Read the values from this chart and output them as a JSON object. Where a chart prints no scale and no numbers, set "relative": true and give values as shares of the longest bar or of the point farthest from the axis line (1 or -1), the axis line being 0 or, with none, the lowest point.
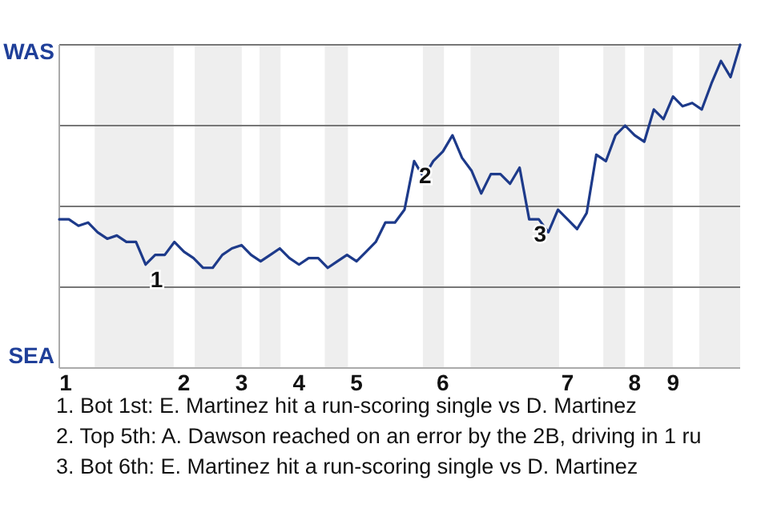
{
  "chart_data": {
    "type": "line",
    "relative": true,
    "grid": true,
    "marker": "none",
    "line_style": "solid",
    "categories": [
      "1",
      null,
      null,
      null,
      null,
      null,
      null,
      null,
      null,
      null,
      null,
      null,
      null,
      "2",
      null,
      null,
      null,
      null,
      null,
      "3",
      null,
      null,
      null,
      null,
      null,
      "4",
      null,
      null,
      null,
      null,
      null,
      "5",
      null,
      null,
      null,
      null,
      null,
      null,
      null,
      null,
      "6",
      null,
      null,
      null,
      null,
      null,
      null,
      null,
      null,
      null,
      null,
      null,
      null,
      "7",
      null,
      null,
      null,
      null,
      null,
      null,
      "8",
      null,
      null,
      null,
      "9",
      null,
      null,
      null,
      null,
      null,
      null,
      null
    ],
    "series": [
      {
        "color": "#1d3a8a",
        "values": [
          0.46,
          0.46,
          0.44,
          0.45,
          0.42,
          0.4,
          0.41,
          0.39,
          0.39,
          0.32,
          0.35,
          0.35,
          0.39,
          0.36,
          0.34,
          0.31,
          0.31,
          0.35,
          0.37,
          0.38,
          0.35,
          0.33,
          0.35,
          0.37,
          0.34,
          0.32,
          0.34,
          0.34,
          0.31,
          0.33,
          0.35,
          0.33,
          0.36,
          0.39,
          0.45,
          0.45,
          0.49,
          0.64,
          0.59,
          0.64,
          0.67,
          0.72,
          0.65,
          0.61,
          0.54,
          0.6,
          0.6,
          0.57,
          0.62,
          0.46,
          0.46,
          0.42,
          0.49,
          0.46,
          0.43,
          0.48,
          0.66,
          0.64,
          0.72,
          0.75,
          0.72,
          0.7,
          0.8,
          0.77,
          0.84,
          0.81,
          0.82,
          0.8,
          0.88,
          0.95,
          0.9,
          1
        ]
      }
    ],
    "annotations": [
      "WAS",
      "SEA",
      "1",
      "2",
      "3",
      "1. Bot 1st: E. Martinez hit a run-scoring single vs D. Martinez",
      "2. Top 5th: A. Dawson reached on an error by the 2B, driving in 1 ru",
      "3. Bot 6th: E. Martinez hit a run-scoring single vs D. Martinez"
    ]
  }
}
